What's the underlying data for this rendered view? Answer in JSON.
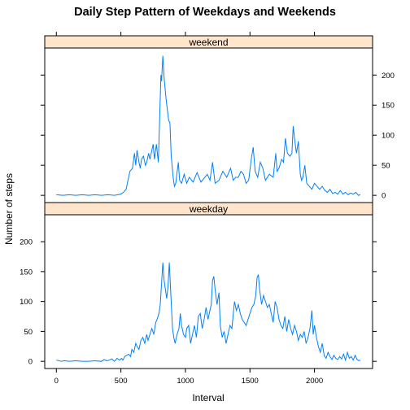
{
  "chart_data": {
    "type": "line",
    "title": "Daily Step Pattern of Weekdays and Weekends",
    "xlabel": "Interval",
    "ylabel": "Number of steps",
    "xlim": [
      -90,
      2450
    ],
    "ylim": [
      -12,
      245
    ],
    "x_ticks": [
      0,
      500,
      1000,
      1500,
      2000
    ],
    "y_ticks": [
      0,
      50,
      100,
      150,
      200
    ],
    "line_color": "#0080ff",
    "strip_color": "#ffe5cc",
    "grid": false,
    "layout": "two stacked panels sharing x and y axes",
    "panels": [
      {
        "name": "weekend",
        "values": [
          [
            0,
            1
          ],
          [
            50,
            0
          ],
          [
            100,
            1
          ],
          [
            150,
            0
          ],
          [
            200,
            1
          ],
          [
            250,
            0
          ],
          [
            300,
            1
          ],
          [
            350,
            0
          ],
          [
            400,
            1
          ],
          [
            450,
            0
          ],
          [
            500,
            2
          ],
          [
            520,
            5
          ],
          [
            540,
            10
          ],
          [
            555,
            25
          ],
          [
            570,
            40
          ],
          [
            590,
            45
          ],
          [
            605,
            70
          ],
          [
            615,
            50
          ],
          [
            625,
            75
          ],
          [
            640,
            55
          ],
          [
            650,
            45
          ],
          [
            660,
            60
          ],
          [
            675,
            65
          ],
          [
            690,
            50
          ],
          [
            700,
            55
          ],
          [
            715,
            70
          ],
          [
            725,
            60
          ],
          [
            740,
            75
          ],
          [
            750,
            85
          ],
          [
            760,
            60
          ],
          [
            775,
            85
          ],
          [
            790,
            55
          ],
          [
            800,
            125
          ],
          [
            810,
            200
          ],
          [
            815,
            190
          ],
          [
            825,
            232
          ],
          [
            835,
            195
          ],
          [
            850,
            160
          ],
          [
            870,
            125
          ],
          [
            880,
            120
          ],
          [
            890,
            65
          ],
          [
            905,
            30
          ],
          [
            915,
            15
          ],
          [
            925,
            20
          ],
          [
            945,
            55
          ],
          [
            955,
            25
          ],
          [
            970,
            20
          ],
          [
            990,
            35
          ],
          [
            1010,
            20
          ],
          [
            1030,
            30
          ],
          [
            1060,
            22
          ],
          [
            1090,
            38
          ],
          [
            1120,
            22
          ],
          [
            1150,
            30
          ],
          [
            1170,
            35
          ],
          [
            1190,
            25
          ],
          [
            1210,
            55
          ],
          [
            1230,
            20
          ],
          [
            1260,
            25
          ],
          [
            1290,
            40
          ],
          [
            1320,
            30
          ],
          [
            1350,
            45
          ],
          [
            1370,
            25
          ],
          [
            1390,
            30
          ],
          [
            1410,
            30
          ],
          [
            1430,
            40
          ],
          [
            1450,
            35
          ],
          [
            1470,
            20
          ],
          [
            1490,
            25
          ],
          [
            1510,
            60
          ],
          [
            1525,
            80
          ],
          [
            1540,
            40
          ],
          [
            1560,
            30
          ],
          [
            1580,
            55
          ],
          [
            1600,
            45
          ],
          [
            1620,
            25
          ],
          [
            1650,
            35
          ],
          [
            1680,
            30
          ],
          [
            1700,
            70
          ],
          [
            1710,
            40
          ],
          [
            1725,
            45
          ],
          [
            1745,
            60
          ],
          [
            1760,
            55
          ],
          [
            1775,
            95
          ],
          [
            1790,
            70
          ],
          [
            1810,
            65
          ],
          [
            1825,
            70
          ],
          [
            1835,
            115
          ],
          [
            1845,
            95
          ],
          [
            1860,
            70
          ],
          [
            1875,
            90
          ],
          [
            1890,
            35
          ],
          [
            1900,
            25
          ],
          [
            1910,
            30
          ],
          [
            1925,
            50
          ],
          [
            1940,
            20
          ],
          [
            1960,
            15
          ],
          [
            1980,
            10
          ],
          [
            2000,
            20
          ],
          [
            2020,
            15
          ],
          [
            2040,
            10
          ],
          [
            2060,
            15
          ],
          [
            2080,
            8
          ],
          [
            2100,
            5
          ],
          [
            2120,
            10
          ],
          [
            2140,
            3
          ],
          [
            2160,
            5
          ],
          [
            2180,
            2
          ],
          [
            2200,
            8
          ],
          [
            2220,
            2
          ],
          [
            2240,
            5
          ],
          [
            2260,
            1
          ],
          [
            2280,
            4
          ],
          [
            2300,
            2
          ],
          [
            2320,
            5
          ],
          [
            2340,
            0
          ],
          [
            2355,
            1
          ]
        ]
      },
      {
        "name": "weekday",
        "values": [
          [
            0,
            2
          ],
          [
            20,
            1
          ],
          [
            40,
            0
          ],
          [
            60,
            1
          ],
          [
            100,
            0
          ],
          [
            150,
            1
          ],
          [
            200,
            0
          ],
          [
            250,
            0
          ],
          [
            300,
            1
          ],
          [
            350,
            0
          ],
          [
            370,
            3
          ],
          [
            390,
            1
          ],
          [
            410,
            2
          ],
          [
            430,
            4
          ],
          [
            450,
            0
          ],
          [
            470,
            5
          ],
          [
            490,
            2
          ],
          [
            505,
            5
          ],
          [
            515,
            2
          ],
          [
            530,
            8
          ],
          [
            545,
            10
          ],
          [
            560,
            12
          ],
          [
            575,
            8
          ],
          [
            585,
            20
          ],
          [
            600,
            15
          ],
          [
            615,
            30
          ],
          [
            625,
            25
          ],
          [
            640,
            20
          ],
          [
            655,
            35
          ],
          [
            670,
            40
          ],
          [
            685,
            30
          ],
          [
            700,
            45
          ],
          [
            710,
            35
          ],
          [
            725,
            45
          ],
          [
            740,
            55
          ],
          [
            755,
            45
          ],
          [
            770,
            65
          ],
          [
            780,
            70
          ],
          [
            795,
            80
          ],
          [
            805,
            95
          ],
          [
            815,
            130
          ],
          [
            825,
            165
          ],
          [
            835,
            135
          ],
          [
            845,
            120
          ],
          [
            855,
            105
          ],
          [
            865,
            125
          ],
          [
            875,
            165
          ],
          [
            885,
            120
          ],
          [
            900,
            55
          ],
          [
            910,
            40
          ],
          [
            920,
            30
          ],
          [
            935,
            45
          ],
          [
            950,
            55
          ],
          [
            960,
            80
          ],
          [
            970,
            60
          ],
          [
            985,
            45
          ],
          [
            1000,
            40
          ],
          [
            1010,
            55
          ],
          [
            1025,
            60
          ],
          [
            1040,
            30
          ],
          [
            1055,
            45
          ],
          [
            1070,
            60
          ],
          [
            1085,
            40
          ],
          [
            1100,
            75
          ],
          [
            1115,
            80
          ],
          [
            1130,
            55
          ],
          [
            1145,
            70
          ],
          [
            1160,
            90
          ],
          [
            1175,
            70
          ],
          [
            1185,
            80
          ],
          [
            1200,
            95
          ],
          [
            1210,
            135
          ],
          [
            1220,
            142
          ],
          [
            1230,
            120
          ],
          [
            1245,
            95
          ],
          [
            1260,
            115
          ],
          [
            1270,
            60
          ],
          [
            1285,
            40
          ],
          [
            1300,
            50
          ],
          [
            1315,
            30
          ],
          [
            1330,
            45
          ],
          [
            1345,
            60
          ],
          [
            1360,
            55
          ],
          [
            1380,
            100
          ],
          [
            1395,
            85
          ],
          [
            1410,
            95
          ],
          [
            1425,
            80
          ],
          [
            1440,
            70
          ],
          [
            1455,
            65
          ],
          [
            1470,
            60
          ],
          [
            1485,
            70
          ],
          [
            1500,
            80
          ],
          [
            1515,
            90
          ],
          [
            1530,
            95
          ],
          [
            1545,
            110
          ],
          [
            1555,
            140
          ],
          [
            1565,
            145
          ],
          [
            1575,
            120
          ],
          [
            1590,
            95
          ],
          [
            1605,
            110
          ],
          [
            1620,
            100
          ],
          [
            1635,
            90
          ],
          [
            1650,
            95
          ],
          [
            1665,
            80
          ],
          [
            1680,
            65
          ],
          [
            1695,
            100
          ],
          [
            1710,
            90
          ],
          [
            1725,
            70
          ],
          [
            1740,
            60
          ],
          [
            1755,
            55
          ],
          [
            1770,
            75
          ],
          [
            1785,
            50
          ],
          [
            1800,
            70
          ],
          [
            1815,
            55
          ],
          [
            1830,
            45
          ],
          [
            1845,
            60
          ],
          [
            1860,
            50
          ],
          [
            1875,
            35
          ],
          [
            1890,
            45
          ],
          [
            1905,
            40
          ],
          [
            1920,
            50
          ],
          [
            1935,
            30
          ],
          [
            1950,
            40
          ],
          [
            1965,
            55
          ],
          [
            1980,
            85
          ],
          [
            1990,
            45
          ],
          [
            2000,
            60
          ],
          [
            2015,
            40
          ],
          [
            2030,
            25
          ],
          [
            2045,
            15
          ],
          [
            2060,
            30
          ],
          [
            2075,
            10
          ],
          [
            2090,
            5
          ],
          [
            2105,
            15
          ],
          [
            2120,
            8
          ],
          [
            2135,
            3
          ],
          [
            2150,
            10
          ],
          [
            2165,
            5
          ],
          [
            2180,
            3
          ],
          [
            2195,
            8
          ],
          [
            2210,
            4
          ],
          [
            2225,
            12
          ],
          [
            2240,
            2
          ],
          [
            2255,
            15
          ],
          [
            2270,
            5
          ],
          [
            2285,
            8
          ],
          [
            2300,
            2
          ],
          [
            2315,
            10
          ],
          [
            2330,
            3
          ],
          [
            2345,
            1
          ],
          [
            2355,
            2
          ]
        ]
      }
    ]
  }
}
